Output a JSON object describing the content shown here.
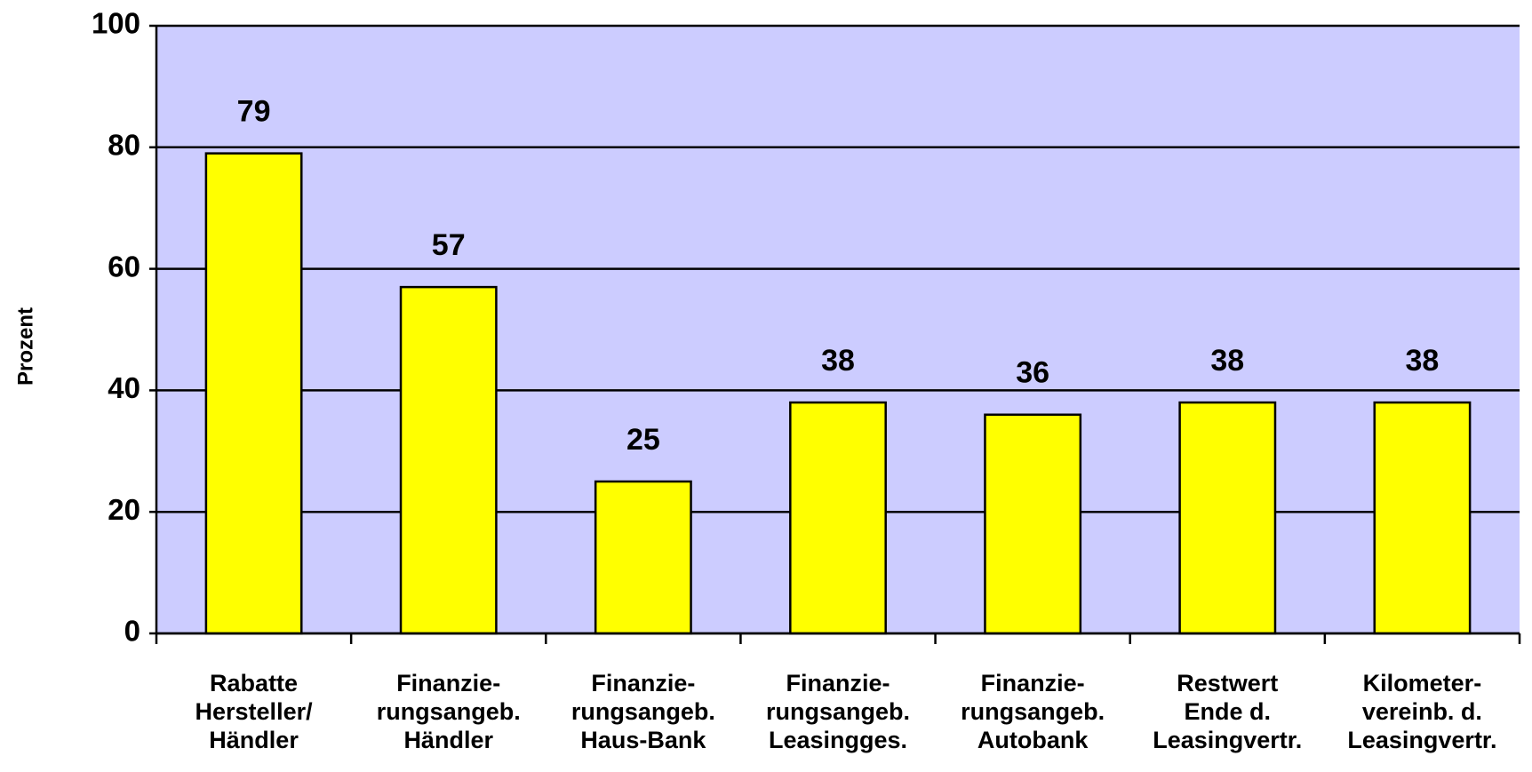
{
  "chart_data": {
    "type": "bar",
    "y_label": "Prozent",
    "categories": [
      "Rabatte\nHersteller/\nHändler",
      "Finanzie-\nrungsangeb.\nHändler",
      "Finanzie-\nrungsangeb.\nHaus-Bank",
      "Finanzie-\nrungsangeb.\nLeasingges.",
      "Finanzie-\nrungsangeb.\nAutobank",
      "Restwert\nEnde d.\nLeasingvertr.",
      "Kilometer-\nvereinb. d.\nLeasingvertr."
    ],
    "values": [
      79,
      57,
      25,
      38,
      36,
      38,
      38
    ],
    "color": "#ffff00",
    "plot_background": "#ccccff",
    "ylim": [
      0,
      100
    ],
    "yticks": [
      0,
      20,
      40,
      60,
      80,
      100
    ],
    "grid": true
  }
}
